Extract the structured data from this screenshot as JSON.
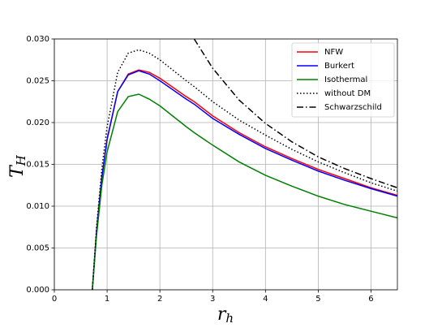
{
  "chart_data": {
    "type": "line",
    "xlabel": {
      "main": "r",
      "sub": "h"
    },
    "ylabel": {
      "main": "T",
      "sub": "H"
    },
    "x": [
      0.72,
      0.8,
      0.9,
      1.0,
      1.2,
      1.4,
      1.6,
      1.8,
      2.0,
      2.5,
      2.65,
      3.0,
      3.5,
      4.0,
      4.5,
      5.0,
      5.5,
      6.0,
      6.5
    ],
    "series": [
      {
        "name": "NFW",
        "color": "#ff0000",
        "style": "solid",
        "values": [
          0,
          0.007,
          0.0135,
          0.018,
          0.0237,
          0.0258,
          0.0263,
          0.026,
          0.0253,
          0.0231,
          0.0225,
          0.0208,
          0.0188,
          0.0171,
          0.0157,
          0.0144,
          0.0133,
          0.0122,
          0.0113
        ]
      },
      {
        "name": "Burkert",
        "color": "#0000ff",
        "style": "solid",
        "values": [
          0,
          0.007,
          0.0134,
          0.018,
          0.0237,
          0.0257,
          0.0262,
          0.0258,
          0.025,
          0.0228,
          0.0222,
          0.0205,
          0.0186,
          0.0169,
          0.0155,
          0.0142,
          0.0131,
          0.0121,
          0.0112
        ]
      },
      {
        "name": "Isothermal",
        "color": "#008000",
        "style": "solid",
        "values": [
          0,
          0.0065,
          0.0125,
          0.0165,
          0.0213,
          0.0231,
          0.0234,
          0.0228,
          0.022,
          0.0195,
          0.0188,
          0.0173,
          0.0153,
          0.0137,
          0.0124,
          0.0112,
          0.0102,
          0.0094,
          0.0086
        ]
      },
      {
        "name": "without DM",
        "color": "#000000",
        "style": "dotted",
        "values": [
          0,
          0.0075,
          0.0145,
          0.0195,
          0.026,
          0.0283,
          0.0287,
          0.0283,
          0.0275,
          0.025,
          0.0243,
          0.0225,
          0.0203,
          0.0185,
          0.0168,
          0.0153,
          0.014,
          0.0128,
          0.0118
        ]
      },
      {
        "name": "Schwarzschild",
        "color": "#000000",
        "style": "dashdot",
        "values": [
          null,
          null,
          null,
          null,
          null,
          null,
          null,
          null,
          null,
          null,
          0.03,
          0.0265,
          0.0227,
          0.0199,
          0.0177,
          0.0159,
          0.0145,
          0.0133,
          0.0122
        ]
      }
    ],
    "xlim": [
      0,
      6.5
    ],
    "xticks": [
      0,
      1,
      2,
      3,
      4,
      5,
      6
    ],
    "ylim": [
      0,
      0.03
    ],
    "yticks": [
      {
        "value": 0,
        "label": "0.000"
      },
      {
        "value": 0.005,
        "label": "0.005"
      },
      {
        "value": 0.01,
        "label": "0.010"
      },
      {
        "value": 0.015,
        "label": "0.015"
      },
      {
        "value": 0.02,
        "label": "0.020"
      },
      {
        "value": 0.025,
        "label": "0.025"
      },
      {
        "value": 0.03,
        "label": "0.030"
      }
    ],
    "grid": true,
    "legend": "upper right"
  }
}
